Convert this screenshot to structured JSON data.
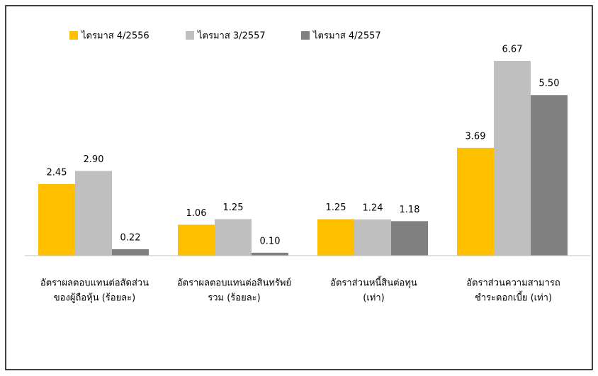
{
  "chart_data": {
    "type": "bar",
    "categories": [
      [
        "อัตราผลตอบแทนต่อสัดส่วน",
        "ของผู้ถือหุ้น (ร้อยละ)"
      ],
      [
        "อัตราผลตอบแทนต่อสินทรัพย์",
        "รวม (ร้อยละ)"
      ],
      [
        "อัตราส่วนหนี้สินต่อทุน",
        "(เท่า)"
      ],
      [
        "อัตราส่วนความสามารถ",
        "ชำระดอกเบี้ย (เท่า)"
      ]
    ],
    "series": [
      {
        "name": "ไตรมาส 4/2556",
        "color": "#ffc000",
        "values": [
          2.45,
          1.06,
          1.25,
          3.69
        ],
        "value_labels": [
          "2.45",
          "1.06",
          "1.25",
          "3.69"
        ]
      },
      {
        "name": "ไตรมาส 3/2557",
        "color": "#bfbfbf",
        "values": [
          2.9,
          1.25,
          1.24,
          6.67
        ],
        "value_labels": [
          "2.90",
          "1.25",
          "1.24",
          "6.67"
        ]
      },
      {
        "name": "ไตรมาส 4/2557",
        "color": "#808080",
        "values": [
          0.22,
          0.1,
          1.18,
          5.5
        ],
        "value_labels": [
          "0.22",
          "0.10",
          "1.18",
          "5.50"
        ]
      }
    ]
  }
}
